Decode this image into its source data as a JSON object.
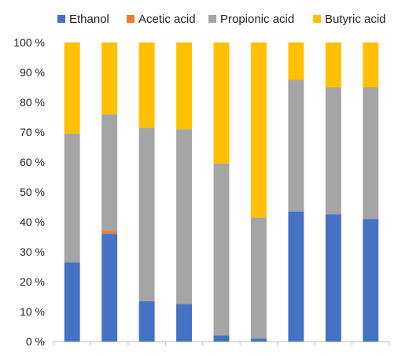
{
  "chart_data": {
    "type": "bar",
    "stacked": true,
    "percent": true,
    "title": "",
    "xlabel": "",
    "ylabel": "",
    "ylim": [
      0,
      100
    ],
    "yticks": [
      "0 %",
      "10 %",
      "20 %",
      "30 %",
      "40 %",
      "50 %",
      "60 %",
      "70 %",
      "80 %",
      "90 %",
      "100 %"
    ],
    "categories": [
      "",
      "",
      "",
      "",
      "",
      "",
      "",
      "",
      ""
    ],
    "grid": false,
    "legend_position": "top",
    "series": [
      {
        "name": "Ethanol",
        "color": "#4472C4",
        "values": [
          26.5,
          36,
          13.5,
          12.5,
          2,
          1,
          43.5,
          42.5,
          41
        ]
      },
      {
        "name": "Acetic acid",
        "color": "#ED7D31",
        "values": [
          0,
          1,
          0,
          0,
          0,
          0,
          0,
          0,
          0
        ]
      },
      {
        "name": "Propionic acid",
        "color": "#A5A5A5",
        "values": [
          43,
          39,
          58,
          58.5,
          57.5,
          40.5,
          44,
          42.5,
          44
        ]
      },
      {
        "name": "Butyric acid",
        "color": "#FFC000",
        "values": [
          30.5,
          24,
          28.5,
          29,
          40.5,
          58.5,
          12.5,
          15,
          15
        ]
      }
    ]
  }
}
